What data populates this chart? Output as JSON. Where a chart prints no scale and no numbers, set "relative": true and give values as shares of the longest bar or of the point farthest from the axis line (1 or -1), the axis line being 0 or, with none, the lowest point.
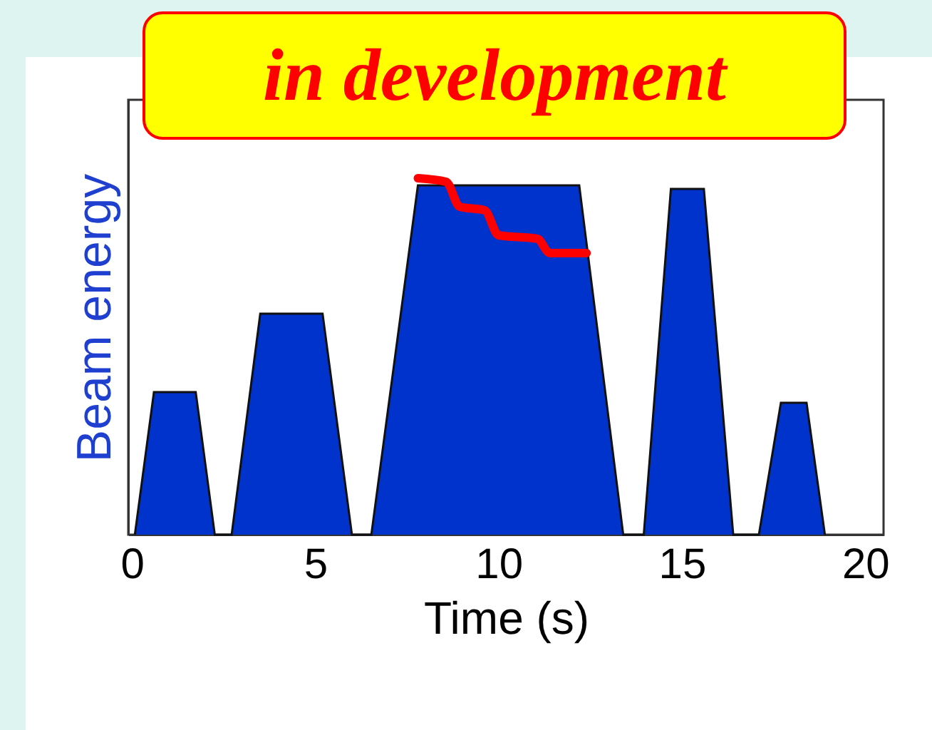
{
  "chart_data": {
    "type": "area",
    "relative": true,
    "xlabel": "Time (s)",
    "ylabel": "Beam energy",
    "annotations": [
      "in development"
    ],
    "xlim": [
      -0.1,
      20.5
    ],
    "xticks": [
      0,
      5,
      10,
      15,
      20
    ],
    "series": [
      {
        "color": "#0033cc",
        "x": [
          0.08,
          0.6,
          1.74,
          2.26,
          2.72,
          3.5,
          5.2,
          6.0,
          6.53,
          7.8,
          12.2,
          13.4,
          13.96,
          14.7,
          15.6,
          16.4,
          17.1,
          17.7,
          18.4,
          18.9
        ],
        "values": [
          0,
          0.4,
          0.4,
          0,
          0,
          0.62,
          0.62,
          0,
          0,
          0.98,
          0.98,
          0,
          0,
          0.97,
          0.97,
          0,
          0,
          0.37,
          0.37,
          0
        ]
      },
      {
        "type": "line",
        "color": "#ff0000",
        "x": [
          7.8,
          8.57,
          8.94,
          9.62,
          10.0,
          11.06,
          11.4,
          12.4
        ],
        "values": [
          1.0,
          0.99,
          0.92,
          0.91,
          0.84,
          0.83,
          0.79,
          0.79
        ]
      }
    ]
  }
}
